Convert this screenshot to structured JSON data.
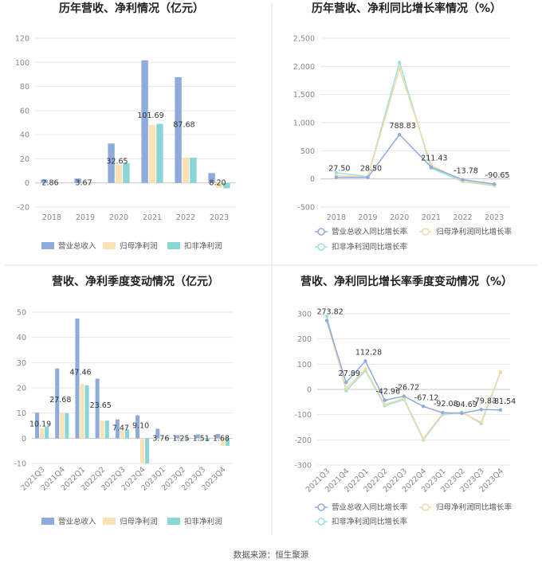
{
  "source": "数据来源：恒生聚源",
  "colors": {
    "revenue": "#8fabdb",
    "net_profit": "#fbe2b4",
    "deducted": "#88d6d8",
    "grid": "#e6e6e6",
    "axis": "#999999"
  },
  "chart_data": [
    {
      "type": "bar",
      "title": "历年营收、净利情况（亿元）",
      "categories": [
        "2018",
        "2019",
        "2020",
        "2021",
        "2022",
        "2023"
      ],
      "ylim": [
        -20,
        120
      ],
      "yticks": [
        -20,
        0,
        20,
        40,
        60,
        80,
        100,
        120
      ],
      "series": [
        {
          "name": "营业总收入",
          "values": [
            2.86,
            3.67,
            32.65,
            101.69,
            87.68,
            8.2
          ]
        },
        {
          "name": "归母净利润",
          "values": [
            0.3,
            0.5,
            15.0,
            48.0,
            21.0,
            -4.0
          ]
        },
        {
          "name": "扣非净利润",
          "values": [
            0.2,
            0.4,
            16.5,
            49.0,
            21.0,
            -4.5
          ]
        }
      ],
      "data_labels": [
        "2.86",
        "3.67",
        "32.65",
        "101.69",
        "87.68",
        "8.20"
      ],
      "legend_position": "bottom"
    },
    {
      "type": "line",
      "title": "历年营收、净利同比增长率情况（%）",
      "categories": [
        "2018",
        "2019",
        "2020",
        "2021",
        "2022",
        "2023"
      ],
      "ylim": [
        -500,
        2500
      ],
      "yticks": [
        -500,
        0,
        500,
        1000,
        1500,
        2000,
        2500
      ],
      "yticklabels": [
        "-500",
        "0",
        "500",
        "1,000",
        "1,500",
        "2,000",
        "2,500"
      ],
      "series": [
        {
          "name": "营业总收入同比增长率",
          "values": [
            27.5,
            28.5,
            788.83,
            211.43,
            -13.78,
            -90.65
          ]
        },
        {
          "name": "归母净利润同比增长率",
          "values": [
            60,
            30,
            1960,
            250,
            -40,
            -110
          ]
        },
        {
          "name": "扣非净利润同比增长率",
          "values": [
            110,
            40,
            2070,
            190,
            -50,
            -120
          ]
        }
      ],
      "data_labels": [
        "27.50",
        "28.50",
        "788.83",
        "211.43",
        "-13.78",
        "-90.65"
      ],
      "legend_position": "bottom"
    },
    {
      "type": "bar",
      "title": "营收、净利季度变动情况（亿元）",
      "categories": [
        "2021Q3",
        "2021Q4",
        "2022Q1",
        "2022Q2",
        "2022Q3",
        "2022Q4",
        "2023Q1",
        "2023Q2",
        "2023Q3",
        "2023Q4"
      ],
      "ylim": [
        -10,
        50
      ],
      "yticks": [
        -10,
        0,
        10,
        20,
        30,
        40,
        50
      ],
      "series": [
        {
          "name": "营业总收入",
          "values": [
            10.19,
            27.68,
            47.46,
            23.65,
            7.47,
            9.1,
            3.76,
            1.25,
            1.51,
            1.68
          ]
        },
        {
          "name": "归母净利润",
          "values": [
            4.0,
            10.0,
            21.5,
            7.0,
            3.0,
            -10.0,
            0.3,
            -0.5,
            -1.0,
            -3.0
          ]
        },
        {
          "name": "扣非净利润",
          "values": [
            4.5,
            10.0,
            21.0,
            7.0,
            3.5,
            -10.0,
            0.2,
            -0.8,
            -1.2,
            -3.0
          ]
        }
      ],
      "data_labels": [
        "10.19",
        "27.68",
        "47.46",
        "23.65",
        "7.47",
        "9.10",
        "3.76",
        "1.25",
        "1.51",
        "1.68"
      ],
      "legend_position": "bottom"
    },
    {
      "type": "line",
      "title": "营收、净利同比增长率季度变动情况（%）",
      "categories": [
        "2021Q3",
        "2021Q4",
        "2022Q1",
        "2022Q2",
        "2022Q3",
        "2022Q4",
        "2023Q1",
        "2023Q2",
        "2023Q3",
        "2023Q4"
      ],
      "ylim": [
        -300,
        300
      ],
      "yticks": [
        -300,
        -200,
        -100,
        0,
        100,
        200,
        300
      ],
      "series": [
        {
          "name": "营业总收入同比增长率",
          "values": [
            273.82,
            27.89,
            112.28,
            -42.96,
            -26.72,
            -67.12,
            -92.08,
            -94.69,
            -79.83,
            -81.54
          ]
        },
        {
          "name": "归母净利润同比增长率",
          "values": [
            270,
            5,
            80,
            -60,
            -35,
            -195,
            -95,
            -92,
            -130,
            70
          ]
        },
        {
          "name": "扣非净利润同比增长率",
          "values": [
            290,
            -5,
            75,
            -65,
            -40,
            -200,
            -100,
            -90,
            -135,
            68
          ]
        }
      ],
      "data_labels": [
        "273.82",
        "27.89",
        "112.28",
        "-42.96",
        "-26.72",
        "-67.12",
        "-92.08",
        "-94.69",
        "-79.83",
        "-81.54"
      ],
      "legend_position": "bottom"
    }
  ]
}
